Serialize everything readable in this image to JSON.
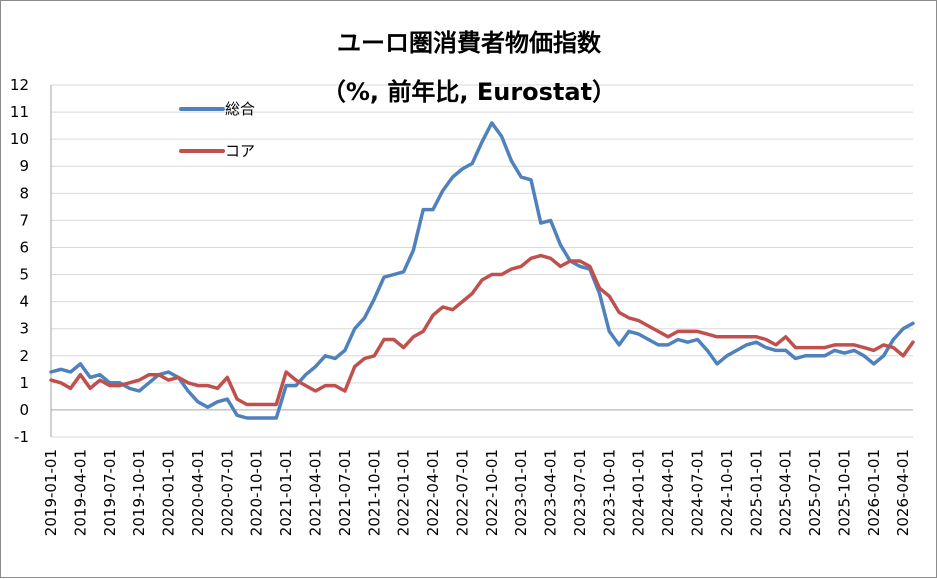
{
  "chart_data": {
    "type": "line",
    "title": "ユーロ圏消費者物価指数",
    "subtitle": "（%, 前年比, Eurostat）",
    "ylim": [
      -1,
      12
    ],
    "yticks": [
      -1,
      0,
      1,
      2,
      3,
      4,
      5,
      6,
      7,
      8,
      9,
      10,
      11,
      12
    ],
    "x": [
      "2019-01-01",
      "2019-02-01",
      "2019-03-01",
      "2019-04-01",
      "2019-05-01",
      "2019-06-01",
      "2019-07-01",
      "2019-08-01",
      "2019-09-01",
      "2019-10-01",
      "2019-11-01",
      "2019-12-01",
      "2020-01-01",
      "2020-02-01",
      "2020-03-01",
      "2020-04-01",
      "2020-05-01",
      "2020-06-01",
      "2020-07-01",
      "2020-08-01",
      "2020-09-01",
      "2020-10-01",
      "2020-11-01",
      "2020-12-01",
      "2021-01-01",
      "2021-02-01",
      "2021-03-01",
      "2021-04-01",
      "2021-05-01",
      "2021-06-01",
      "2021-07-01",
      "2021-08-01",
      "2021-09-01",
      "2021-10-01",
      "2021-11-01",
      "2021-12-01",
      "2022-01-01",
      "2022-02-01",
      "2022-03-01",
      "2022-04-01",
      "2022-05-01",
      "2022-06-01",
      "2022-07-01",
      "2022-08-01",
      "2022-09-01",
      "2022-10-01",
      "2022-11-01",
      "2022-12-01",
      "2023-01-01",
      "2023-02-01",
      "2023-03-01",
      "2023-04-01",
      "2023-05-01",
      "2023-06-01",
      "2023-07-01",
      "2023-08-01",
      "2023-09-01",
      "2023-10-01",
      "2023-11-01",
      "2023-12-01",
      "2024-01-01",
      "2024-02-01",
      "2024-03-01",
      "2024-04-01",
      "2024-05-01",
      "2024-06-01",
      "2024-07-01",
      "2024-08-01",
      "2024-09-01",
      "2024-10-01",
      "2024-11-01",
      "2024-12-01",
      "2025-01-01",
      "2025-02-01",
      "2025-03-01",
      "2025-04-01",
      "2025-05-01",
      "2025-06-01",
      "2025-07-01",
      "2025-08-01",
      "2025-09-01",
      "2025-10-01",
      "2025-11-01",
      "2025-12-01",
      "2026-01-01",
      "2026-02-01",
      "2026-03-01",
      "2026-04-01",
      "2026-05-01"
    ],
    "xticks": [
      "2019-01-01",
      "2019-04-01",
      "2019-07-01",
      "2019-10-01",
      "2020-01-01",
      "2020-04-01",
      "2020-07-01",
      "2020-10-01",
      "2021-01-01",
      "2021-04-01",
      "2021-07-01",
      "2021-10-01",
      "2022-01-01",
      "2022-04-01",
      "2022-07-01",
      "2022-10-01",
      "2023-01-01",
      "2023-04-01",
      "2023-07-01",
      "2023-10-01",
      "2024-01-01",
      "2024-04-01",
      "2024-07-01",
      "2024-10-01",
      "2025-01-01",
      "2025-04-01",
      "2025-07-01",
      "2025-10-01",
      "2026-01-01",
      "2026-04-01"
    ],
    "series": [
      {
        "name": "総合",
        "color": "#4f81bd",
        "values": [
          1.4,
          1.5,
          1.4,
          1.7,
          1.2,
          1.3,
          1.0,
          1.0,
          0.8,
          0.7,
          1.0,
          1.3,
          1.4,
          1.2,
          0.7,
          0.3,
          0.1,
          0.3,
          0.4,
          -0.2,
          -0.3,
          -0.3,
          -0.3,
          -0.3,
          0.9,
          0.9,
          1.3,
          1.6,
          2.0,
          1.9,
          2.2,
          3.0,
          3.4,
          4.1,
          4.9,
          5.0,
          5.1,
          5.9,
          7.4,
          7.4,
          8.1,
          8.6,
          8.9,
          9.1,
          9.9,
          10.6,
          10.1,
          9.2,
          8.6,
          8.5,
          6.9,
          7.0,
          6.1,
          5.5,
          5.3,
          5.2,
          4.3,
          2.9,
          2.4,
          2.9,
          2.8,
          2.6,
          2.4,
          2.4,
          2.6,
          2.5,
          2.6,
          2.2,
          1.7,
          2.0,
          2.2,
          2.4,
          2.5,
          2.3,
          2.2,
          2.2,
          1.9,
          2.0,
          2.0,
          2.0,
          2.2,
          2.1,
          2.2,
          2.0,
          1.7,
          2.0,
          2.6,
          3.0,
          3.2
        ]
      },
      {
        "name": "コア",
        "color": "#c0504d",
        "values": [
          1.1,
          1.0,
          0.8,
          1.3,
          0.8,
          1.1,
          0.9,
          0.9,
          1.0,
          1.1,
          1.3,
          1.3,
          1.1,
          1.2,
          1.0,
          0.9,
          0.9,
          0.8,
          1.2,
          0.4,
          0.2,
          0.2,
          0.2,
          0.2,
          1.4,
          1.1,
          0.9,
          0.7,
          0.9,
          0.9,
          0.7,
          1.6,
          1.9,
          2.0,
          2.6,
          2.6,
          2.3,
          2.7,
          2.9,
          3.5,
          3.8,
          3.7,
          4.0,
          4.3,
          4.8,
          5.0,
          5.0,
          5.2,
          5.3,
          5.6,
          5.7,
          5.6,
          5.3,
          5.5,
          5.5,
          5.3,
          4.5,
          4.2,
          3.6,
          3.4,
          3.3,
          3.1,
          2.9,
          2.7,
          2.9,
          2.9,
          2.9,
          2.8,
          2.7,
          2.7,
          2.7,
          2.7,
          2.7,
          2.6,
          2.4,
          2.7,
          2.3,
          2.3,
          2.3,
          2.3,
          2.4,
          2.4,
          2.4,
          2.3,
          2.2,
          2.4,
          2.3,
          2.0,
          2.5
        ]
      }
    ],
    "legend_position": "top-left",
    "grid": true
  }
}
